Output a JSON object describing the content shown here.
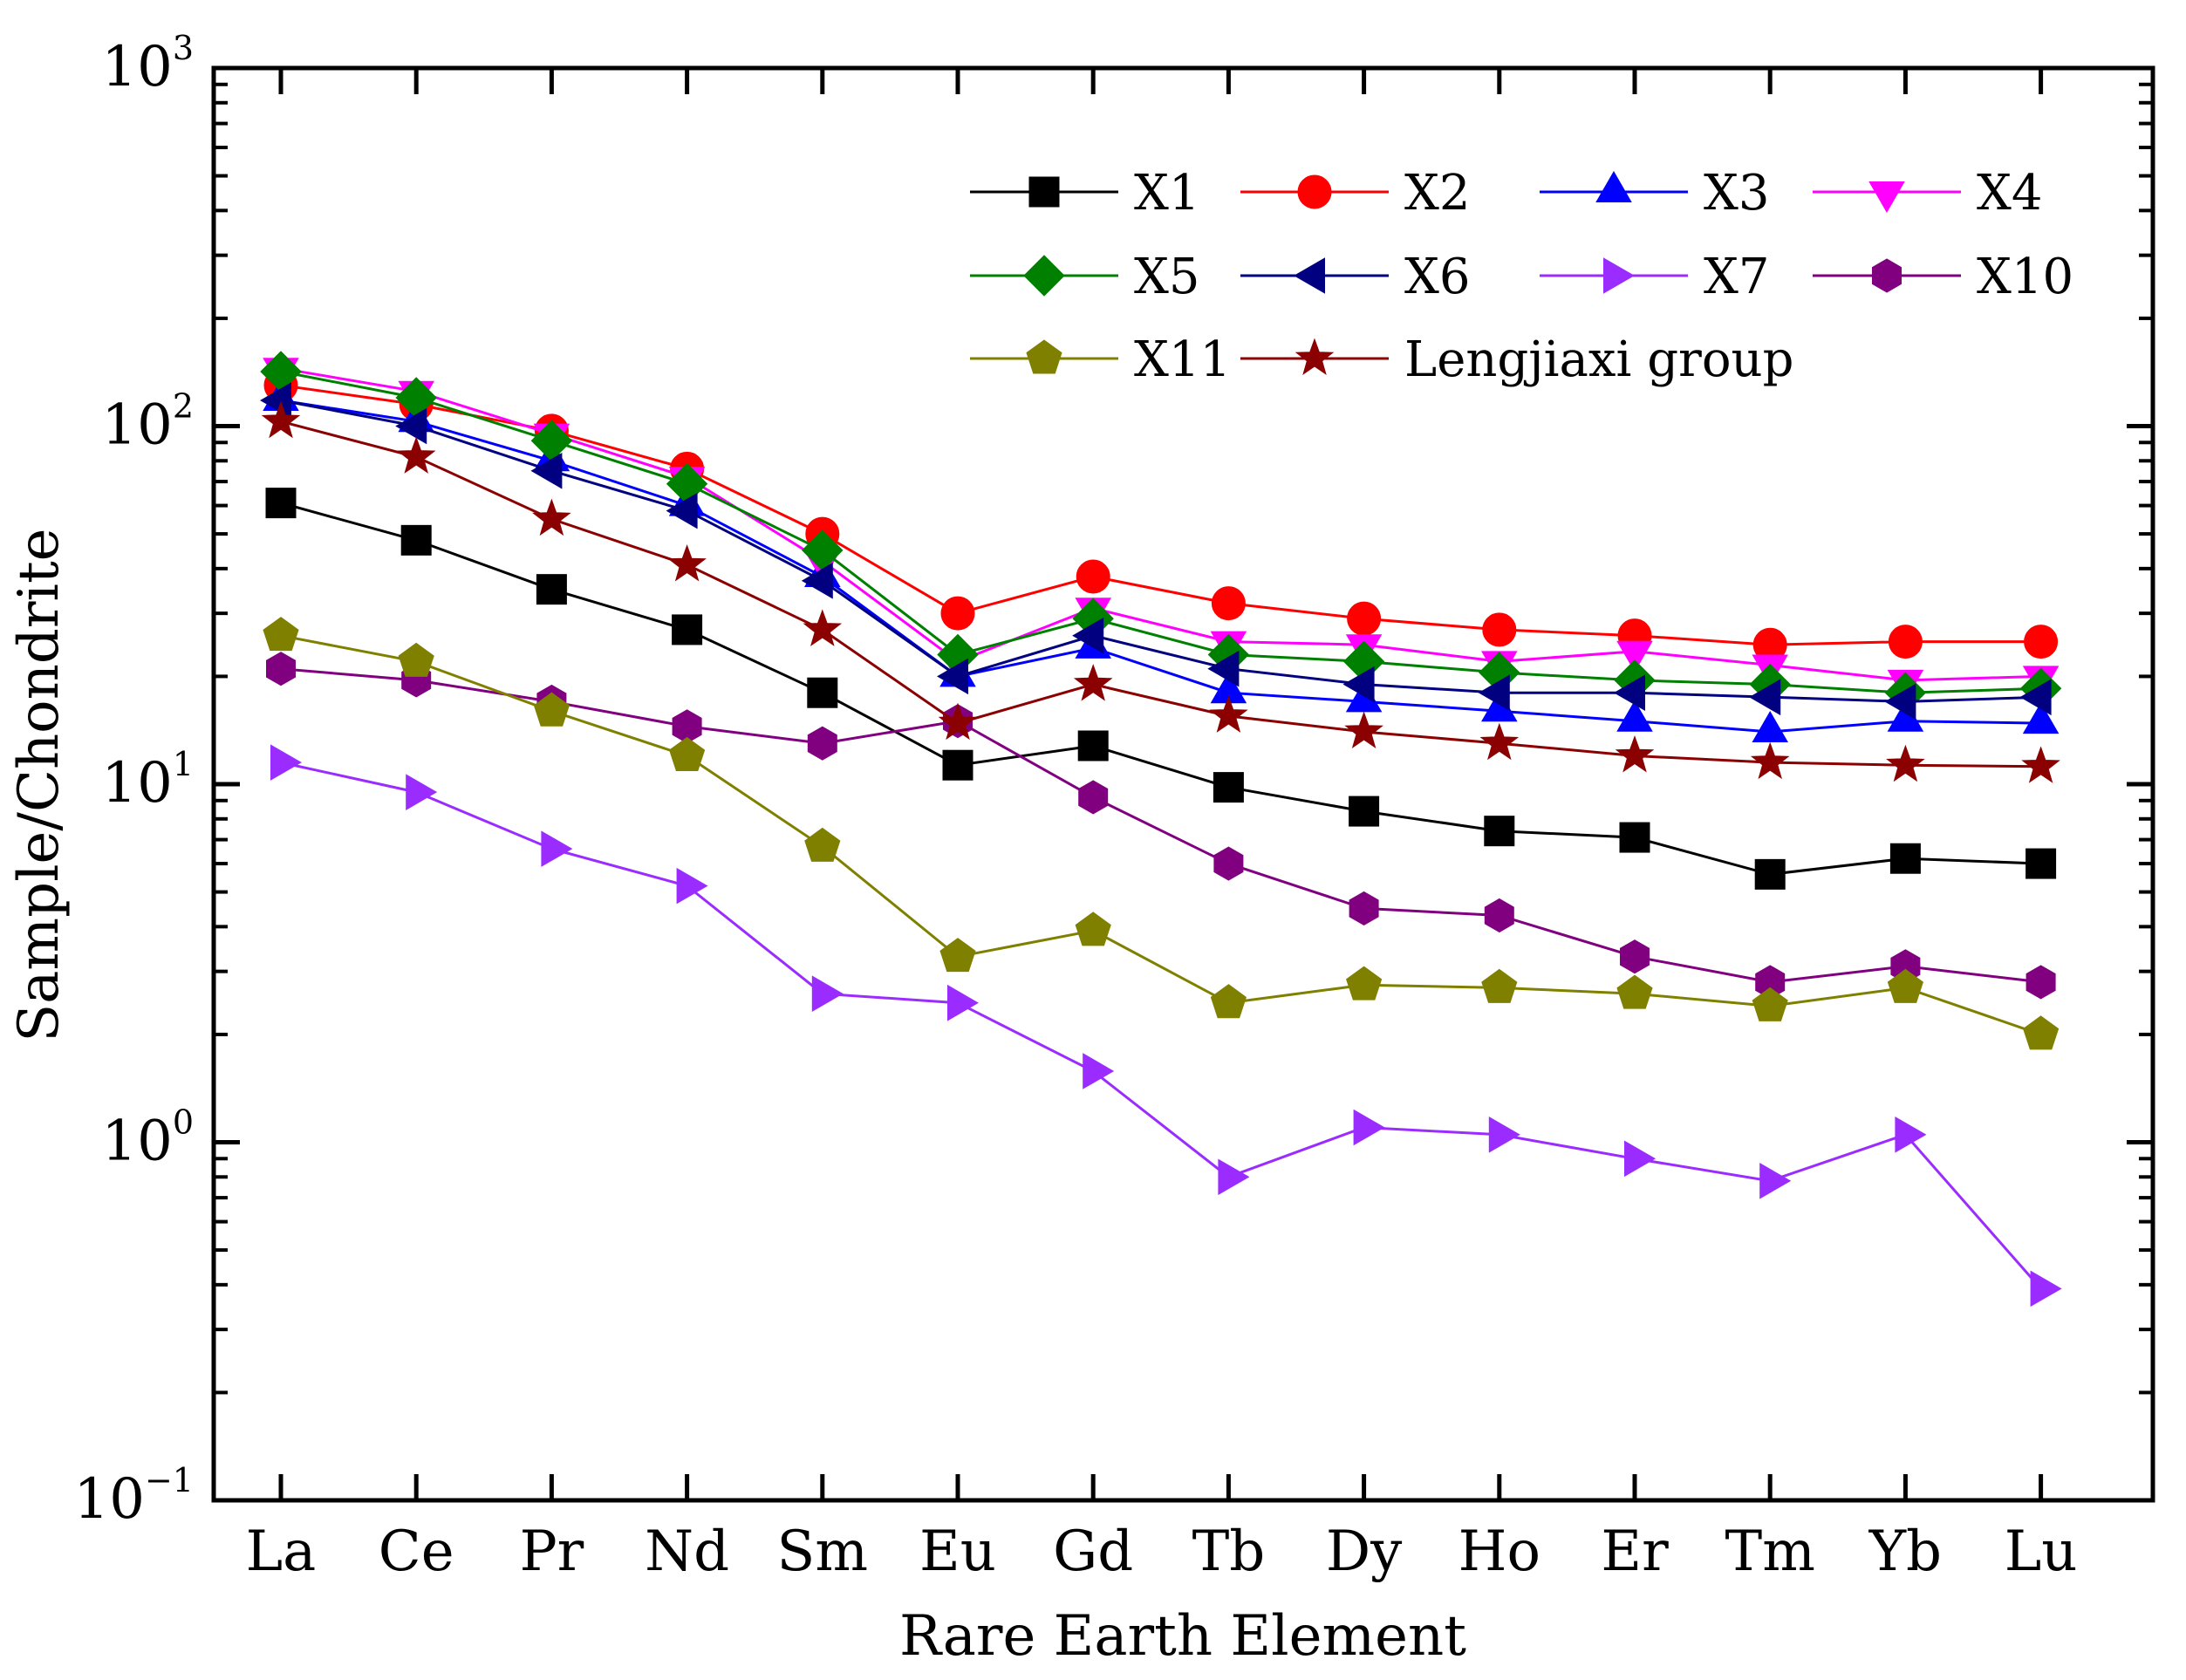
{
  "chart_data": {
    "type": "line",
    "title": "",
    "xlabel": "Rare Earth Element",
    "ylabel": "Sample/Chondrite",
    "yscale": "log",
    "ylim": [
      0.1,
      1000
    ],
    "grid": false,
    "legend_position": "top-right",
    "categories": [
      "La",
      "Ce",
      "Pr",
      "Nd",
      "Sm",
      "Eu",
      "Gd",
      "Tb",
      "Dy",
      "Ho",
      "Er",
      "Tm",
      "Yb",
      "Lu"
    ],
    "yticks": [
      {
        "value": 0.1,
        "base": "10",
        "exp": "−1"
      },
      {
        "value": 1,
        "base": "10",
        "exp": "0"
      },
      {
        "value": 10,
        "base": "10",
        "exp": "1"
      },
      {
        "value": 100,
        "base": "10",
        "exp": "2"
      },
      {
        "value": 1000,
        "base": "10",
        "exp": "3"
      }
    ],
    "series": [
      {
        "name": "X1",
        "color": "#000000",
        "marker": "square",
        "values": [
          61,
          48,
          35,
          27,
          18,
          11.3,
          12.8,
          9.8,
          8.4,
          7.4,
          7.1,
          5.6,
          6.2,
          6.0
        ]
      },
      {
        "name": "X2",
        "color": "#ff0000",
        "marker": "circle",
        "values": [
          130,
          115,
          97,
          76,
          50,
          30,
          38,
          32,
          29,
          27,
          26,
          24.5,
          25,
          25
        ]
      },
      {
        "name": "X3",
        "color": "#0000ff",
        "marker": "triangle-up",
        "values": [
          118,
          103,
          80,
          60,
          38,
          20,
          24,
          18,
          17,
          16,
          15,
          14,
          15,
          14.8
        ]
      },
      {
        "name": "X4",
        "color": "#ff00ff",
        "marker": "triangle-down",
        "values": [
          145,
          125,
          95,
          72,
          42,
          22,
          31,
          25,
          24.5,
          22,
          23.5,
          21.5,
          19.5,
          20
        ]
      },
      {
        "name": "X5",
        "color": "#008000",
        "marker": "diamond",
        "values": [
          142,
          120,
          91,
          69,
          45,
          23,
          29,
          23,
          22,
          20.5,
          19.5,
          19,
          18,
          18.5
        ]
      },
      {
        "name": "X6",
        "color": "#000080",
        "marker": "triangle-left",
        "values": [
          118,
          100,
          75,
          58,
          37,
          20,
          26,
          21,
          19,
          18,
          18,
          17.5,
          17,
          17.5
        ]
      },
      {
        "name": "X7",
        "color": "#9b2cff",
        "marker": "triangle-right",
        "values": [
          11.5,
          9.5,
          6.6,
          5.2,
          2.6,
          2.45,
          1.58,
          0.8,
          1.1,
          1.05,
          0.9,
          0.78,
          1.05,
          0.39
        ]
      },
      {
        "name": "X10",
        "color": "#800080",
        "marker": "hexagon",
        "values": [
          21,
          19.5,
          17,
          14.5,
          13,
          15,
          9.2,
          6.0,
          4.5,
          4.3,
          3.3,
          2.8,
          3.1,
          2.8
        ]
      },
      {
        "name": "X11",
        "color": "#808000",
        "marker": "pentagon",
        "values": [
          26,
          22,
          16,
          12,
          6.7,
          3.3,
          3.9,
          2.45,
          2.75,
          2.7,
          2.6,
          2.4,
          2.7,
          2.0
        ]
      },
      {
        "name": "Lengjiaxi group",
        "color": "#8b0000",
        "marker": "star",
        "values": [
          103,
          82,
          55,
          41,
          27,
          14.8,
          19,
          15.5,
          14,
          13,
          12,
          11.5,
          11.3,
          11.2
        ]
      }
    ]
  }
}
